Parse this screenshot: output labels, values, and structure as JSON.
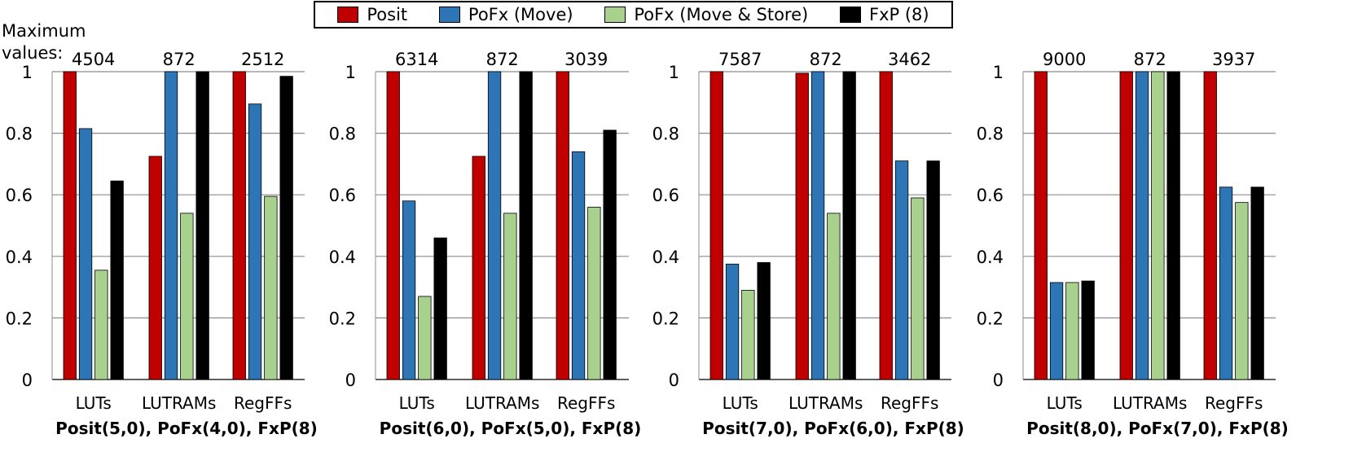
{
  "legend": [
    {
      "name": "Posit",
      "color": "#c00000"
    },
    {
      "name": "PoFx (Move)",
      "color": "#2e75b6"
    },
    {
      "name": "PoFx (Move & Store)",
      "color": "#a9d18e"
    },
    {
      "name": "FxP (8)",
      "color": "#000000"
    }
  ],
  "max_label": {
    "line1": "Maximum",
    "line2": "values:"
  },
  "chart_data": [
    {
      "type": "bar",
      "title": "Posit(5,0), PoFx(4,0), FxP(8)",
      "categories": [
        "LUTs",
        "LUTRAMs",
        "RegFFs"
      ],
      "max_values": [
        "4504",
        "872",
        "2512"
      ],
      "ylim": [
        0,
        1
      ],
      "yticks": [
        "0",
        "0.2",
        "0.4",
        "0.6",
        "0.8",
        "1"
      ],
      "series": [
        {
          "name": "Posit",
          "values": [
            1.0,
            0.725,
            1.0
          ]
        },
        {
          "name": "PoFx (Move)",
          "values": [
            0.815,
            1.0,
            0.895
          ]
        },
        {
          "name": "PoFx (Move & Store)",
          "values": [
            0.355,
            0.54,
            0.595
          ]
        },
        {
          "name": "FxP (8)",
          "values": [
            0.645,
            1.0,
            0.985
          ]
        }
      ]
    },
    {
      "type": "bar",
      "title": "Posit(6,0), PoFx(5,0), FxP(8)",
      "categories": [
        "LUTs",
        "LUTRAMs",
        "RegFFs"
      ],
      "max_values": [
        "6314",
        "872",
        "3039"
      ],
      "ylim": [
        0,
        1
      ],
      "yticks": [
        "0",
        "0.2",
        "0.4",
        "0.6",
        "0.8",
        "1"
      ],
      "series": [
        {
          "name": "Posit",
          "values": [
            1.0,
            0.725,
            1.0
          ]
        },
        {
          "name": "PoFx (Move)",
          "values": [
            0.58,
            1.0,
            0.74
          ]
        },
        {
          "name": "PoFx (Move & Store)",
          "values": [
            0.27,
            0.54,
            0.56
          ]
        },
        {
          "name": "FxP (8)",
          "values": [
            0.46,
            1.0,
            0.81
          ]
        }
      ]
    },
    {
      "type": "bar",
      "title": "Posit(7,0), PoFx(6,0), FxP(8)",
      "categories": [
        "LUTs",
        "LUTRAMs",
        "RegFFs"
      ],
      "max_values": [
        "7587",
        "872",
        "3462"
      ],
      "ylim": [
        0,
        1
      ],
      "yticks": [
        "0",
        "0.2",
        "0.4",
        "0.6",
        "0.8",
        "1"
      ],
      "series": [
        {
          "name": "Posit",
          "values": [
            1.0,
            0.995,
            1.0
          ]
        },
        {
          "name": "PoFx (Move)",
          "values": [
            0.375,
            1.0,
            0.71
          ]
        },
        {
          "name": "PoFx (Move & Store)",
          "values": [
            0.29,
            0.54,
            0.59
          ]
        },
        {
          "name": "FxP (8)",
          "values": [
            0.38,
            1.0,
            0.71
          ]
        }
      ]
    },
    {
      "type": "bar",
      "title": "Posit(8,0), PoFx(7,0), FxP(8)",
      "categories": [
        "LUTs",
        "LUTRAMs",
        "RegFFs"
      ],
      "max_values": [
        "9000",
        "872",
        "3937"
      ],
      "ylim": [
        0,
        1
      ],
      "yticks": [
        "0",
        "0.2",
        "0.4",
        "0.6",
        "0.8",
        "1"
      ],
      "series": [
        {
          "name": "Posit",
          "values": [
            1.0,
            1.0,
            1.0
          ]
        },
        {
          "name": "PoFx (Move)",
          "values": [
            0.315,
            1.0,
            0.625
          ]
        },
        {
          "name": "PoFx (Move & Store)",
          "values": [
            0.315,
            1.0,
            0.575
          ]
        },
        {
          "name": "FxP (8)",
          "values": [
            0.32,
            1.0,
            0.625
          ]
        }
      ]
    }
  ]
}
